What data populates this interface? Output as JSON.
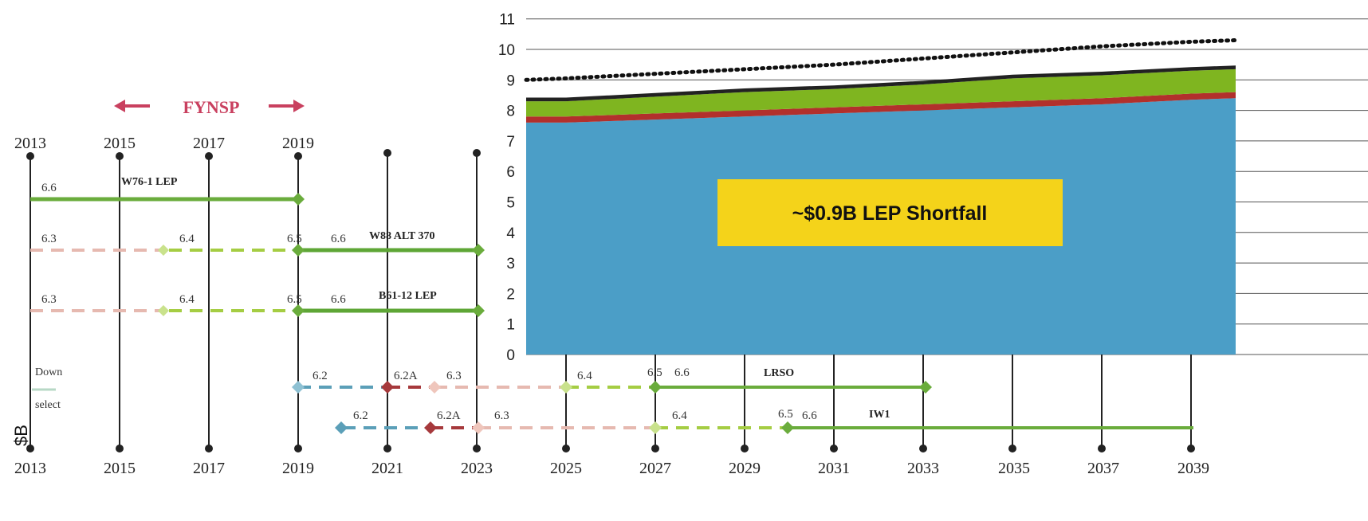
{
  "fynsp": {
    "label": "FYNSP"
  },
  "years": {
    "top_labels": [
      "2013",
      "2015",
      "2017",
      "2019"
    ],
    "bottom_labels": [
      "2013",
      "2015",
      "2017",
      "2019",
      "2021",
      "2023",
      "2025",
      "2027",
      "2029",
      "2031",
      "2033",
      "2035",
      "2037",
      "2039"
    ]
  },
  "programs": [
    {
      "name": "W76-1 LEP",
      "phases": [
        "6.6"
      ]
    },
    {
      "name": "W88 ALT 370",
      "phases": [
        "6.3",
        "6.4",
        "6.5",
        "6.6"
      ]
    },
    {
      "name": "B61-12 LEP",
      "phases": [
        "6.3",
        "6.4",
        "6.5",
        "6.6"
      ]
    },
    {
      "name": "LRSO",
      "phases": [
        "6.2",
        "6.2A",
        "6.3",
        "6.4",
        "6.5",
        "6.6"
      ]
    },
    {
      "name": "IW1",
      "phases": [
        "6.2",
        "6.2A",
        "6.3",
        "6.4",
        "6.5",
        "6.6"
      ]
    }
  ],
  "legend_fragments": {
    "down": "Down",
    "select": "select"
  },
  "ylabel": "$B",
  "chart_data": {
    "type": "area",
    "x": [
      2024,
      2025,
      2027,
      2029,
      2031,
      2033,
      2035,
      2037,
      2039,
      2040
    ],
    "series": [
      {
        "color": "#4b9ec7",
        "values": [
          7.6,
          7.6,
          7.7,
          7.8,
          7.9,
          8.0,
          8.1,
          8.2,
          8.35,
          8.4
        ]
      },
      {
        "color": "#b2302c",
        "values": [
          0.2,
          0.2,
          0.2,
          0.2,
          0.2,
          0.2,
          0.2,
          0.2,
          0.2,
          0.2
        ]
      },
      {
        "color": "#7fb520",
        "values": [
          0.5,
          0.5,
          0.55,
          0.6,
          0.6,
          0.65,
          0.75,
          0.75,
          0.75,
          0.75
        ]
      },
      {
        "color": "#222222",
        "values": [
          0.12,
          0.12,
          0.12,
          0.12,
          0.12,
          0.12,
          0.12,
          0.12,
          0.12,
          0.12
        ]
      }
    ],
    "dotted_line": {
      "values": [
        9.0,
        9.05,
        9.2,
        9.35,
        9.5,
        9.7,
        9.9,
        10.1,
        10.25,
        10.3
      ]
    },
    "yticks": [
      "0",
      "1",
      "2",
      "3",
      "4",
      "5",
      "6",
      "7",
      "8",
      "9",
      "10",
      "11"
    ],
    "ylim": [
      0,
      11
    ],
    "callout": "~$0.9B LEP Shortfall",
    "callout_color": "#f4d31a"
  }
}
